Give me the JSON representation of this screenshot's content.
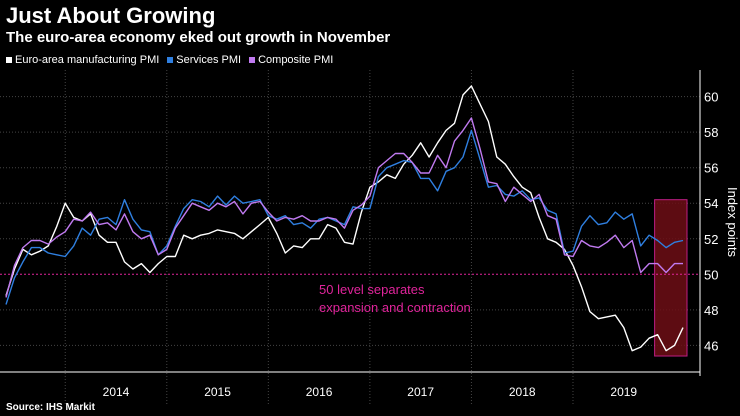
{
  "title": "Just About Growing",
  "subtitle": "The euro-area economy eked out growth in November",
  "source": "Source: IHS Markit",
  "colors": {
    "manufacturing": "#ffffff",
    "services": "#2f7fe0",
    "composite": "#c07af0",
    "annotation": "#e0249b",
    "highlight": "#6e0f16",
    "grid": "#444444"
  },
  "chart_data": {
    "type": "line",
    "title": "Just About Growing",
    "subtitle": "The euro-area economy eked out growth in November",
    "xlabel": "",
    "ylabel": "Index points",
    "ylim": [
      44.5,
      61.5
    ],
    "yticks": [
      46,
      48,
      50,
      52,
      54,
      56,
      58,
      60
    ],
    "x_start": "2013-06",
    "year_labels": [
      "2014",
      "2015",
      "2016",
      "2017",
      "2018",
      "2019"
    ],
    "reference_line": {
      "value": 50,
      "label": [
        "50 level separates",
        "expansion and contraction"
      ]
    },
    "highlight_from_index": 77,
    "series": [
      {
        "name": "Euro-area manufacturing PMI",
        "key": "manufacturing",
        "values": [
          48.8,
          50.3,
          51.4,
          51.1,
          51.3,
          51.6,
          52.7,
          54.0,
          53.2,
          53.0,
          53.4,
          52.2,
          51.8,
          51.8,
          50.7,
          50.3,
          50.6,
          50.1,
          50.6,
          51.0,
          51.0,
          52.2,
          52.0,
          52.2,
          52.3,
          52.5,
          52.4,
          52.3,
          52.0,
          52.4,
          52.8,
          53.2,
          52.3,
          51.2,
          51.6,
          51.5,
          52.0,
          52.0,
          52.8,
          52.6,
          51.8,
          51.7,
          53.5,
          54.9,
          55.2,
          55.6,
          55.4,
          56.2,
          56.7,
          57.4,
          56.6,
          57.4,
          58.1,
          58.5,
          60.1,
          60.6,
          59.6,
          58.6,
          56.6,
          56.2,
          55.5,
          54.9,
          54.6,
          53.2,
          52.0,
          51.8,
          51.4,
          50.5,
          49.3,
          47.9,
          47.5,
          47.6,
          47.7,
          47.0,
          45.7,
          45.9,
          46.4,
          46.6,
          45.7,
          46.0,
          47.0
        ]
      },
      {
        "name": "Services PMI",
        "key": "services",
        "values": [
          48.3,
          49.8,
          50.7,
          51.5,
          51.5,
          51.2,
          51.1,
          51.0,
          51.6,
          52.6,
          52.2,
          53.1,
          53.2,
          52.8,
          54.2,
          53.1,
          52.5,
          52.4,
          51.1,
          51.6,
          52.7,
          53.7,
          54.2,
          54.1,
          53.8,
          54.4,
          53.9,
          54.4,
          54.0,
          54.1,
          54.2,
          53.3,
          53.1,
          53.3,
          52.8,
          52.9,
          52.6,
          53.1,
          53.2,
          53.0,
          52.8,
          53.8,
          53.7,
          53.7,
          55.5,
          56.0,
          56.2,
          56.4,
          56.3,
          55.4,
          55.4,
          54.7,
          55.8,
          56.0,
          56.6,
          58.1,
          56.5,
          54.9,
          55.0,
          54.5,
          54.4,
          54.7,
          54.2,
          54.3,
          53.6,
          53.4,
          51.2,
          51.3,
          52.7,
          53.3,
          52.8,
          52.9,
          53.5,
          53.1,
          53.4,
          51.6,
          52.2,
          51.9,
          51.5,
          51.8,
          51.9
        ]
      },
      {
        "name": "Composite PMI",
        "key": "composite",
        "values": [
          48.7,
          50.5,
          51.5,
          51.9,
          51.9,
          51.7,
          52.1,
          52.4,
          53.1,
          53.0,
          53.5,
          52.8,
          52.9,
          52.5,
          53.4,
          52.4,
          52.0,
          52.2,
          51.1,
          51.4,
          52.6,
          53.3,
          54.0,
          53.8,
          53.6,
          54.0,
          53.8,
          54.1,
          53.4,
          54.0,
          54.1,
          53.5,
          53.0,
          53.2,
          53.1,
          53.3,
          53.0,
          53.0,
          53.2,
          53.1,
          52.6,
          53.6,
          53.9,
          54.4,
          56.0,
          56.4,
          56.8,
          56.8,
          56.3,
          55.7,
          55.7,
          56.7,
          56.0,
          57.5,
          58.1,
          58.8,
          57.1,
          55.2,
          55.1,
          54.1,
          54.9,
          54.5,
          54.1,
          54.5,
          53.3,
          53.1,
          51.1,
          51.0,
          51.9,
          51.6,
          51.5,
          51.8,
          52.2,
          51.5,
          51.9,
          50.1,
          50.6,
          50.6,
          50.1,
          50.6,
          50.6
        ]
      }
    ]
  }
}
